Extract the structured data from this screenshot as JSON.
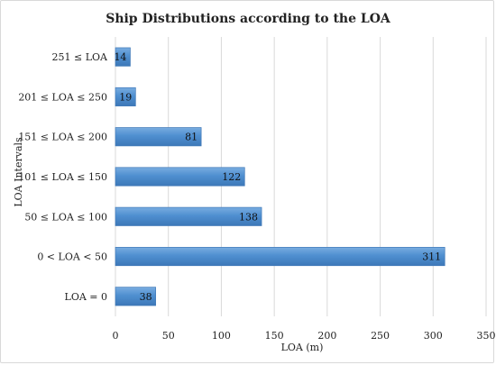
{
  "chart_data": {
    "type": "bar",
    "orientation": "horizontal",
    "title": "Ship Distributions according to the LOA",
    "xlabel": "LOA (m)",
    "ylabel": "LOA Intervals",
    "categories": [
      "251 ≤ LOA",
      "201 ≤ LOA ≤ 250",
      "151 ≤ LOA ≤ 200",
      "101 ≤ LOA ≤ 150",
      "50 ≤ LOA ≤ 100",
      "0 < LOA < 50",
      "LOA = 0"
    ],
    "values": [
      14,
      19,
      81,
      122,
      138,
      311,
      38
    ],
    "value_labels": [
      "14",
      "19",
      "81",
      "122",
      "138",
      "311",
      "38"
    ],
    "xlim": [
      0,
      350
    ],
    "xticks": [
      0,
      50,
      100,
      150,
      200,
      250,
      300,
      350
    ],
    "xtick_labels": [
      "0",
      "50",
      "100",
      "150",
      "200",
      "250",
      "300",
      "350"
    ],
    "grid": true,
    "bar_color": "#4f8fd0"
  }
}
